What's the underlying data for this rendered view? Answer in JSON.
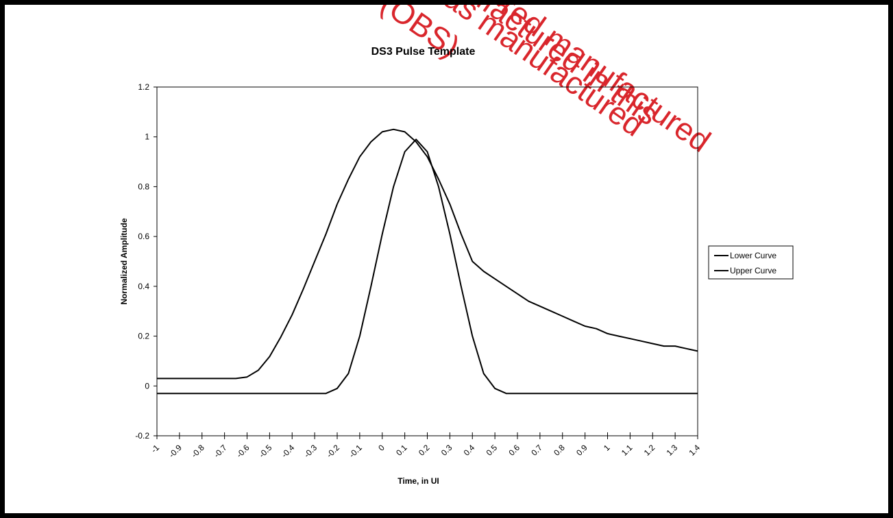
{
  "watermark": {
    "lines": [
      "Product was manufactured",
      "red (OBS)",
      "manufactured in this",
      "red manufactured"
    ],
    "color": "#d9262c"
  },
  "chart_data": {
    "type": "line",
    "title": "DS3 Pulse Template",
    "xlabel": "Time, in UI",
    "ylabel": "Normalized Amplitude",
    "xlim": [
      -1,
      1.4
    ],
    "ylim": [
      -0.2,
      1.2
    ],
    "x_ticks": [
      "-1",
      "-0.9",
      "-0.8",
      "-0.7",
      "-0.6",
      "-0.5",
      "-0.4",
      "-0.3",
      "-0.2",
      "-0.1",
      "0",
      "0.1",
      "0.2",
      "0.3",
      "0.4",
      "0.5",
      "0.6",
      "0.7",
      "0.8",
      "0.9",
      "1",
      "1.1",
      "1.2",
      "1.3",
      "1.4"
    ],
    "y_ticks": [
      "-0.2",
      "0",
      "0.2",
      "0.4",
      "0.6",
      "0.8",
      "1",
      "1.2"
    ],
    "legend_position": "right",
    "grid": false,
    "line_color": "#000000",
    "series": [
      {
        "name": "Lower Curve",
        "x": [
          -1,
          -0.95,
          -0.9,
          -0.85,
          -0.8,
          -0.75,
          -0.7,
          -0.65,
          -0.6,
          -0.55,
          -0.5,
          -0.45,
          -0.4,
          -0.35,
          -0.3,
          -0.25,
          -0.2,
          -0.15,
          -0.1,
          -0.05,
          0,
          0.05,
          0.1,
          0.15,
          0.2,
          0.25,
          0.3,
          0.35,
          0.4,
          0.45,
          0.5,
          0.55,
          0.6,
          0.65,
          0.7,
          0.75,
          0.8,
          0.85,
          0.9,
          0.95,
          1,
          1.05,
          1.1,
          1.15,
          1.2,
          1.25,
          1.3,
          1.35,
          1.4
        ],
        "values": [
          -0.03,
          -0.03,
          -0.03,
          -0.03,
          -0.03,
          -0.03,
          -0.03,
          -0.03,
          -0.03,
          -0.03,
          -0.03,
          -0.03,
          -0.03,
          -0.03,
          -0.03,
          -0.03,
          -0.01,
          0.05,
          0.2,
          0.4,
          0.61,
          0.8,
          0.94,
          0.99,
          0.94,
          0.8,
          0.61,
          0.4,
          0.2,
          0.05,
          -0.01,
          -0.03,
          -0.03,
          -0.03,
          -0.03,
          -0.03,
          -0.03,
          -0.03,
          -0.03,
          -0.03,
          -0.03,
          -0.03,
          -0.03,
          -0.03,
          -0.03,
          -0.03,
          -0.03,
          -0.03,
          -0.03
        ]
      },
      {
        "name": "Upper Curve",
        "x": [
          -1,
          -0.95,
          -0.9,
          -0.85,
          -0.8,
          -0.75,
          -0.7,
          -0.65,
          -0.6,
          -0.55,
          -0.5,
          -0.45,
          -0.4,
          -0.35,
          -0.3,
          -0.25,
          -0.2,
          -0.15,
          -0.1,
          -0.05,
          0,
          0.05,
          0.1,
          0.15,
          0.2,
          0.25,
          0.3,
          0.35,
          0.4,
          0.45,
          0.5,
          0.55,
          0.6,
          0.65,
          0.7,
          0.75,
          0.8,
          0.85,
          0.9,
          0.95,
          1,
          1.05,
          1.1,
          1.15,
          1.2,
          1.25,
          1.3,
          1.35,
          1.4
        ],
        "values": [
          0.03,
          0.03,
          0.03,
          0.03,
          0.03,
          0.03,
          0.03,
          0.03,
          0.036,
          0.063,
          0.118,
          0.197,
          0.286,
          0.39,
          0.5,
          0.61,
          0.73,
          0.83,
          0.92,
          0.98,
          1.02,
          1.03,
          1.02,
          0.98,
          0.92,
          0.83,
          0.73,
          0.61,
          0.5,
          0.46,
          0.43,
          0.4,
          0.37,
          0.34,
          0.32,
          0.3,
          0.28,
          0.26,
          0.24,
          0.23,
          0.21,
          0.2,
          0.19,
          0.18,
          0.17,
          0.16,
          0.16,
          0.15,
          0.14
        ]
      }
    ]
  }
}
